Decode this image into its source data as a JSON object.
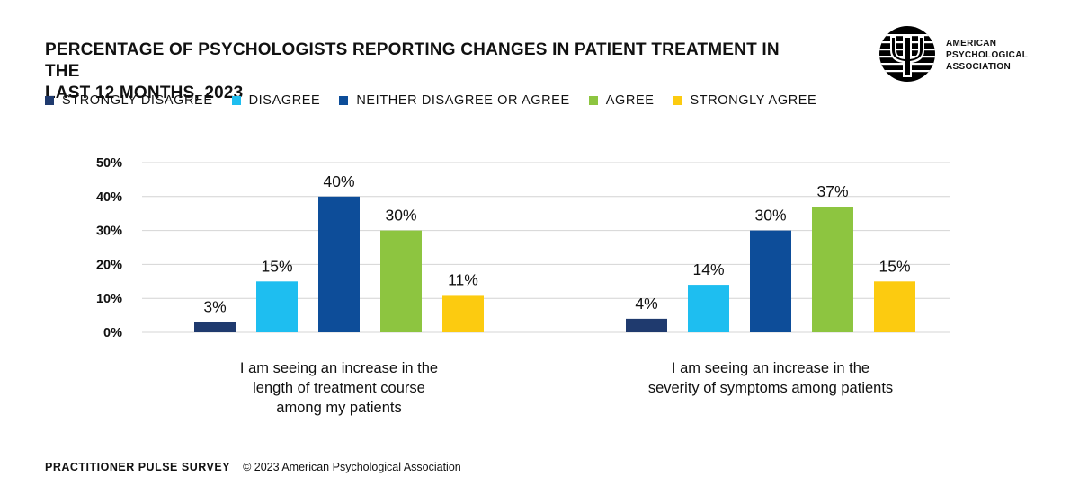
{
  "title_lines": [
    "PERCENTAGE OF PSYCHOLOGISTS REPORTING CHANGES IN PATIENT TREATMENT IN THE",
    "LAST 12 MONTHS, 2023"
  ],
  "logo": {
    "lines": [
      "AMERICAN",
      "PSYCHOLOGICAL",
      "ASSOCIATION"
    ],
    "icon": "psi-symbol-icon"
  },
  "legend": [
    {
      "label": "STRONGLY DISAGREE",
      "color": "#1f3a6e"
    },
    {
      "label": "DISAGREE",
      "color": "#1ebef0"
    },
    {
      "label": "NEITHER DISAGREE OR AGREE",
      "color": "#0d4d99"
    },
    {
      "label": "AGREE",
      "color": "#8dc540"
    },
    {
      "label": "STRONGLY AGREE",
      "color": "#fccb10"
    }
  ],
  "chart_data": {
    "type": "bar",
    "y_ticks": [
      "50%",
      "40%",
      "30%",
      "20%",
      "10%",
      "0%"
    ],
    "ylim": [
      0,
      50
    ],
    "grid": true,
    "legend_position": "top-left",
    "groups": [
      {
        "label_lines": [
          "I am seeing an increase in the",
          "length of treatment course",
          "among my patients"
        ],
        "values": [
          3,
          15,
          40,
          30,
          11
        ],
        "labels": [
          "3%",
          "15%",
          "40%",
          "30%",
          "11%"
        ]
      },
      {
        "label_lines": [
          "I am seeing an increase in the",
          "severity of symptoms among patients"
        ],
        "values": [
          4,
          14,
          30,
          37,
          15
        ],
        "labels": [
          "4%",
          "14%",
          "30%",
          "37%",
          "15%"
        ]
      }
    ]
  },
  "footer": {
    "survey": "PRACTITIONER PULSE SURVEY",
    "copyright": "© 2023 American Psychological Association"
  }
}
